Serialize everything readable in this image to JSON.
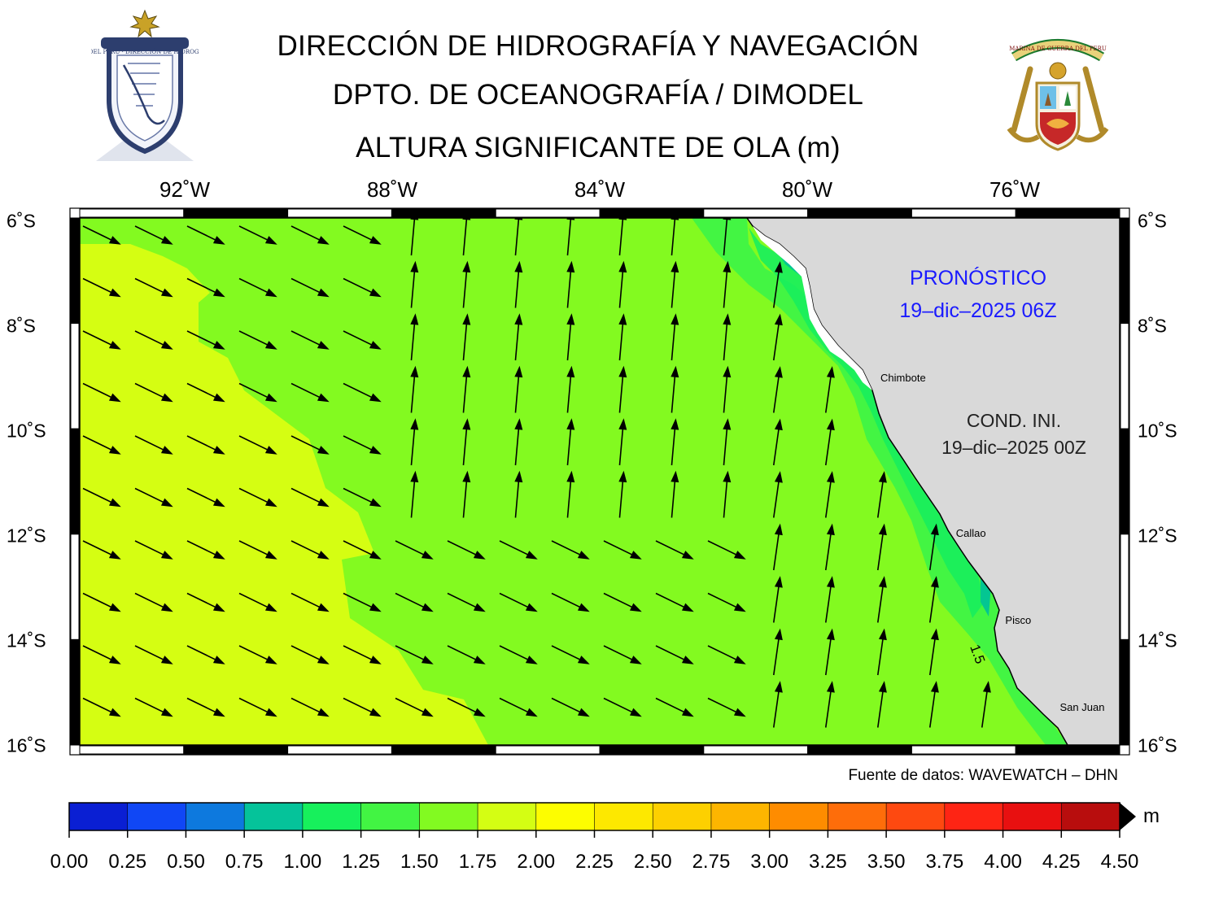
{
  "header": {
    "line1": "DIRECCIÓN DE HIDROGRAFÍA Y NAVEGACIÓN",
    "line2": "DPTO. DE OCEANOGRAFÍA / DIMODEL",
    "line3": "ALTURA SIGNIFICANTE DE OLA (m)"
  },
  "logos": {
    "left": {
      "ring_text": "MARINA DE GUERRA DEL PERU · DIRECCIÓN DE HIDROGRAFÍA Y NAVEGACIÓN"
    },
    "right": {
      "ribbon_text": "MARINA DE GUERRA DEL PERU"
    }
  },
  "map": {
    "lon_labels": [
      "92˚W",
      "88˚W",
      "84˚W",
      "80˚W",
      "76˚W"
    ],
    "lon_values": [
      -92,
      -88,
      -84,
      -80,
      -76
    ],
    "lat_labels": [
      "6˚S",
      "8˚S",
      "10˚S",
      "12˚S",
      "14˚S",
      "16˚S"
    ],
    "lat_values": [
      -6,
      -8,
      -10,
      -12,
      -14,
      -16
    ],
    "extent": {
      "lon_min": -94.0,
      "lon_max": -74.0,
      "lat_min": -16.0,
      "lat_max": -6.0
    },
    "forecast_label": "PRONÓSTICO",
    "forecast_time": "19–dic–2025 06Z",
    "init_label": "COND. INI.",
    "init_time": "19–dic–2025 00Z",
    "contour_label": "1.5",
    "cities": [
      {
        "name": "Chimbote",
        "lon": -78.6,
        "lat": -9.1
      },
      {
        "name": "Callao",
        "lon": -77.15,
        "lat": -12.05
      },
      {
        "name": "Pisco",
        "lon": -76.2,
        "lat": -13.7
      },
      {
        "name": "San Juan",
        "lon": -75.15,
        "lat": -15.35
      }
    ],
    "colors": {
      "land": "#d9d9d9",
      "band_1_25_1_50": "#43f543",
      "band_1_50_1_75": "#83fa20",
      "band_1_75_2_00": "#d5fe12",
      "band_1_00_1_25": "#18ee5d",
      "band_0_75_1_00": "#04c692"
    }
  },
  "source_text": "Fuente de datos: WAVEWATCH – DHN",
  "colorbar": {
    "unit": "m",
    "ticks": [
      "0.00",
      "0.25",
      "0.50",
      "0.75",
      "1.00",
      "1.25",
      "1.50",
      "1.75",
      "2.00",
      "2.25",
      "2.50",
      "2.75",
      "3.00",
      "3.25",
      "3.50",
      "3.75",
      "4.00",
      "4.25",
      "4.50"
    ],
    "colors": [
      "#0a1fd3",
      "#1047f5",
      "#0d79de",
      "#05c39a",
      "#17f05c",
      "#42f443",
      "#82fa21",
      "#d4fe13",
      "#fdfd00",
      "#fde800",
      "#fdd000",
      "#fdb500",
      "#fe8c00",
      "#fe6d0a",
      "#fe4910",
      "#fe2414",
      "#e81010",
      "#b80d0d"
    ]
  }
}
